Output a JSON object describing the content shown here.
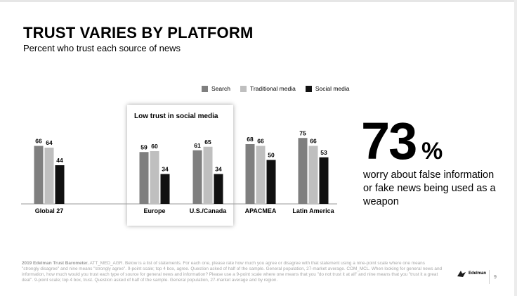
{
  "slide": {
    "title": "TRUST VARIES BY PLATFORM",
    "subtitle": "Percent who trust each source of news",
    "highlight_label": "Low trust in social media",
    "stat_number": "73",
    "stat_unit": "%",
    "stat_text": "worry about false information or fake news being used as a weapon",
    "footnote_source": "2019 Edelman Trust Barometer.",
    "footnote_body": "ATT_MED_AGR. Below is a list of statements. For each one, please rate how much you agree or disagree with that statement using a nine-point scale where one means \"strongly disagree\" and nine means \"strongly agree\". 9-point scale; top 4 box, agree. Question asked of half of the sample. General population, 27-market average. COM_MCL. When looking for general news and information, how much would you trust each type of source for general news and information? Please use a 9-point scale where one means that you \"do not trust it at all\" and nine means that you \"trust it a great deal\". 9-point scale; top 4 box, trust. Question asked of half of the sample. General population, 27-market average and by region.",
    "logo_text": "Edelman",
    "page_number": "9"
  },
  "chart_data": {
    "type": "bar",
    "categories": [
      "Global 27",
      "Europe",
      "U.S./Canada",
      "APACMEA",
      "Latin America"
    ],
    "series": [
      {
        "name": "Search",
        "values": [
          66,
          59,
          61,
          68,
          75
        ],
        "color": "#7f7f7f"
      },
      {
        "name": "Traditional media",
        "values": [
          64,
          60,
          65,
          66,
          66
        ],
        "color": "#bfbfbf"
      },
      {
        "name": "Social media",
        "values": [
          44,
          34,
          34,
          50,
          53
        ],
        "color": "#111111"
      }
    ],
    "ylim": [
      0,
      100
    ],
    "grid": false,
    "legend_position": "top"
  }
}
